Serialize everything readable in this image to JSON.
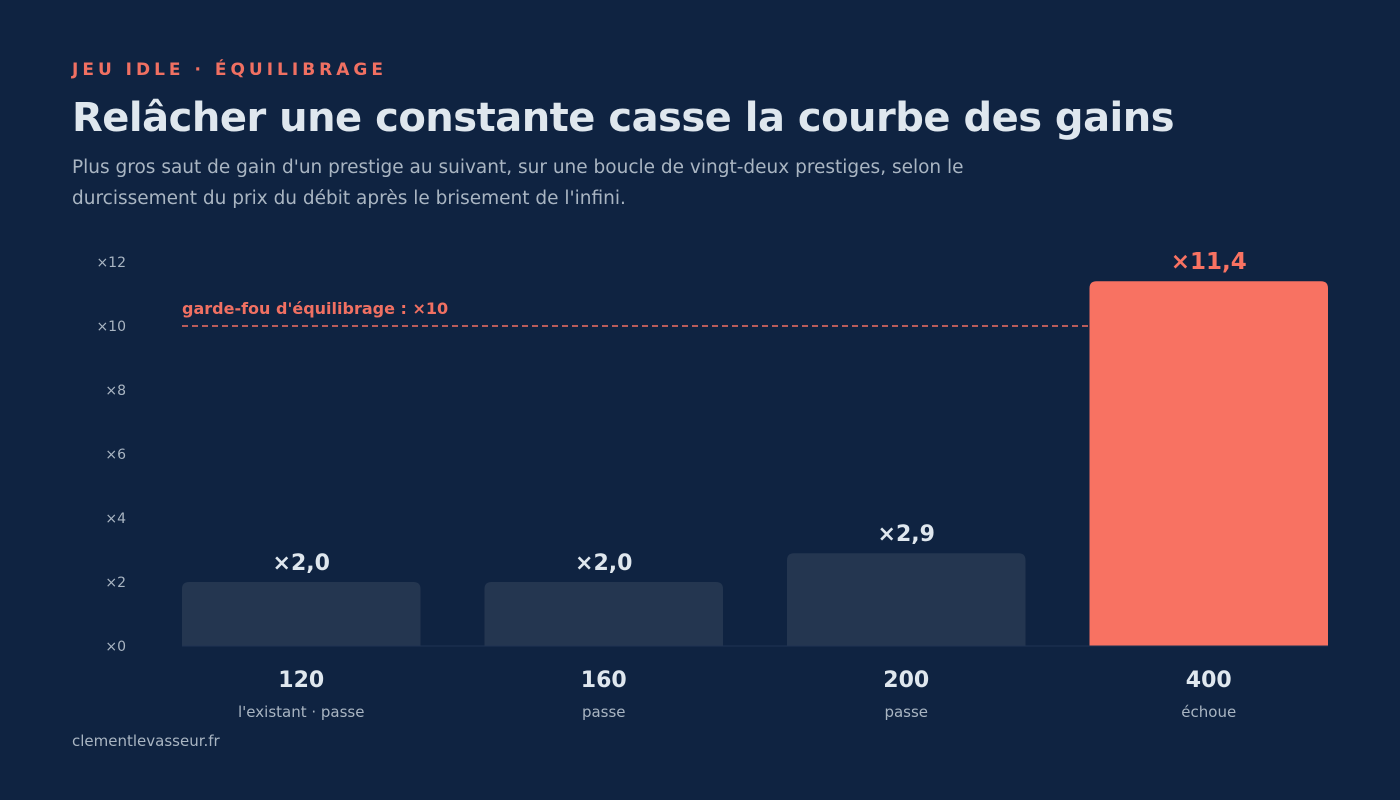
{
  "header": {
    "eyebrow": "JEU IDLE · ÉQUILIBRAGE",
    "title": "Relâcher une constante casse la courbe des gains",
    "subtitle": "Plus gros saut de gain d'un prestige au suivant, sur une boucle de vingt-deux prestiges, selon le durcissement du prix du débit après le brisement de l'infini."
  },
  "footer": {
    "source": "clementlevasseur.fr"
  },
  "colors": {
    "background": "#0f2341",
    "bar_default": "#243650",
    "bar_highlight": "#f87262",
    "accent": "#f07062",
    "text_light": "#dfe7ee",
    "text_muted": "#a9b5c2"
  },
  "chart_data": {
    "type": "bar",
    "categories": [
      "120",
      "160",
      "200",
      "400"
    ],
    "category_sublabels": [
      "l'existant · passe",
      "passe",
      "passe",
      "échoue"
    ],
    "values": [
      2.0,
      2.0,
      2.9,
      11.4
    ],
    "value_labels": [
      "×2,0",
      "×2,0",
      "×2,9",
      "×11,4"
    ],
    "highlight": [
      false,
      false,
      false,
      true
    ],
    "ylim": [
      0,
      12
    ],
    "yticks": [
      0,
      2,
      4,
      6,
      8,
      10,
      12
    ],
    "ytick_labels": [
      "×0",
      "×2",
      "×4",
      "×6",
      "×8",
      "×10",
      "×12"
    ],
    "threshold": {
      "value": 10,
      "label": "garde-fou d'équilibrage : ×10"
    },
    "grid": false,
    "legend": "none"
  }
}
